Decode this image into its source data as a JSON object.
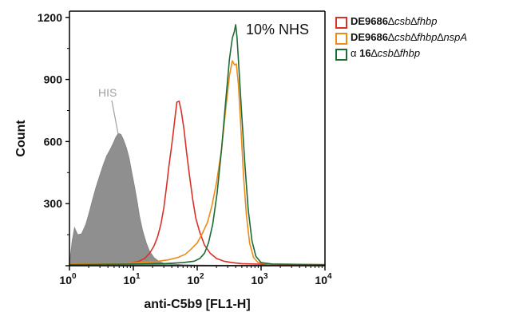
{
  "chart_data": {
    "type": "histogram",
    "x_scale": "log",
    "xlim": [
      1,
      10000
    ],
    "ylim": [
      0,
      1230
    ],
    "xlabel": "anti-C5b9 [FL1-H]",
    "ylabel": "Count",
    "x_ticks": [
      {
        "value": 1,
        "base": "10",
        "exp": "0"
      },
      {
        "value": 10,
        "base": "10",
        "exp": "1"
      },
      {
        "value": 100,
        "base": "10",
        "exp": "2"
      },
      {
        "value": 1000,
        "base": "10",
        "exp": "3"
      },
      {
        "value": 10000,
        "base": "10",
        "exp": "4"
      }
    ],
    "y_ticks": [
      {
        "value": 0,
        "label": ""
      },
      {
        "value": 300,
        "label": "300"
      },
      {
        "value": 600,
        "label": "600"
      },
      {
        "value": 900,
        "label": "900"
      },
      {
        "value": 1200,
        "label": "1200"
      }
    ],
    "annotation": "10% NHS",
    "legend_position": "right",
    "series": [
      {
        "name": "HIS",
        "style": "filled",
        "color": "#8f8f8f",
        "label_text": "HIS",
        "label_color": "#a0a0a0",
        "points": [
          [
            1,
            10
          ],
          [
            1.1,
            120
          ],
          [
            1.2,
            185
          ],
          [
            1.35,
            150
          ],
          [
            1.55,
            155
          ],
          [
            1.8,
            200
          ],
          [
            2.0,
            250
          ],
          [
            2.3,
            320
          ],
          [
            2.6,
            380
          ],
          [
            3.0,
            440
          ],
          [
            3.4,
            490
          ],
          [
            3.8,
            530
          ],
          [
            4.3,
            560
          ],
          [
            4.8,
            590
          ],
          [
            5.3,
            620
          ],
          [
            5.8,
            640
          ],
          [
            6.4,
            635
          ],
          [
            7.0,
            610
          ],
          [
            7.8,
            570
          ],
          [
            8.6,
            520
          ],
          [
            9.5,
            450
          ],
          [
            10.5,
            380
          ],
          [
            11.5,
            310
          ],
          [
            12.5,
            240
          ],
          [
            14,
            170
          ],
          [
            16,
            110
          ],
          [
            18,
            70
          ],
          [
            21,
            40
          ],
          [
            25,
            22
          ],
          [
            30,
            12
          ],
          [
            40,
            8
          ],
          [
            60,
            5
          ],
          [
            100,
            4
          ],
          [
            200,
            3
          ],
          [
            10000,
            2
          ]
        ]
      },
      {
        "name": "DE9686∆csb∆fhbp",
        "color": "#d9312a",
        "legend": {
          "strain": "DE9686",
          "mutations": [
            "csb",
            "fhbp"
          ]
        },
        "points": [
          [
            1,
            6
          ],
          [
            3,
            8
          ],
          [
            6,
            10
          ],
          [
            9,
            14
          ],
          [
            12,
            20
          ],
          [
            15,
            35
          ],
          [
            18,
            60
          ],
          [
            21,
            95
          ],
          [
            24,
            140
          ],
          [
            27,
            200
          ],
          [
            30,
            280
          ],
          [
            33,
            380
          ],
          [
            36,
            480
          ],
          [
            39,
            560
          ],
          [
            42,
            640
          ],
          [
            45,
            720
          ],
          [
            48,
            790
          ],
          [
            52,
            795
          ],
          [
            56,
            750
          ],
          [
            62,
            660
          ],
          [
            68,
            550
          ],
          [
            76,
            430
          ],
          [
            85,
            320
          ],
          [
            95,
            230
          ],
          [
            110,
            160
          ],
          [
            130,
            100
          ],
          [
            160,
            60
          ],
          [
            200,
            35
          ],
          [
            260,
            22
          ],
          [
            350,
            15
          ],
          [
            500,
            10
          ],
          [
            800,
            8
          ],
          [
            2000,
            5
          ],
          [
            10000,
            3
          ]
        ]
      },
      {
        "name": "DE9686∆csb∆fhbp∆nspA",
        "color": "#ee8a16",
        "legend": {
          "strain": "DE9686",
          "mutations": [
            "csb",
            "fhbp",
            "nspA"
          ]
        },
        "points": [
          [
            1,
            8
          ],
          [
            5,
            10
          ],
          [
            12,
            15
          ],
          [
            22,
            20
          ],
          [
            35,
            28
          ],
          [
            50,
            40
          ],
          [
            65,
            55
          ],
          [
            80,
            80
          ],
          [
            100,
            110
          ],
          [
            120,
            155
          ],
          [
            145,
            210
          ],
          [
            170,
            290
          ],
          [
            200,
            400
          ],
          [
            240,
            560
          ],
          [
            280,
            760
          ],
          [
            320,
            920
          ],
          [
            355,
            990
          ],
          [
            385,
            970
          ],
          [
            410,
            975
          ],
          [
            440,
            880
          ],
          [
            480,
            680
          ],
          [
            530,
            440
          ],
          [
            590,
            240
          ],
          [
            660,
            110
          ],
          [
            760,
            40
          ],
          [
            900,
            15
          ],
          [
            1300,
            8
          ],
          [
            10000,
            5
          ]
        ]
      },
      {
        "name": "α 16∆csb∆fhbp",
        "color": "#1e6b35",
        "legend": {
          "strain": "α 16",
          "mutations": [
            "csb",
            "fhbp"
          ]
        },
        "points": [
          [
            1,
            5
          ],
          [
            10,
            8
          ],
          [
            30,
            10
          ],
          [
            60,
            15
          ],
          [
            90,
            22
          ],
          [
            110,
            35
          ],
          [
            130,
            60
          ],
          [
            150,
            110
          ],
          [
            175,
            200
          ],
          [
            205,
            350
          ],
          [
            240,
            560
          ],
          [
            280,
            800
          ],
          [
            320,
            1000
          ],
          [
            355,
            1100
          ],
          [
            380,
            1130
          ],
          [
            400,
            1165
          ],
          [
            420,
            1100
          ],
          [
            450,
            950
          ],
          [
            500,
            720
          ],
          [
            560,
            480
          ],
          [
            630,
            270
          ],
          [
            720,
            120
          ],
          [
            830,
            45
          ],
          [
            1000,
            15
          ],
          [
            1500,
            8
          ],
          [
            10000,
            5
          ]
        ]
      }
    ]
  }
}
